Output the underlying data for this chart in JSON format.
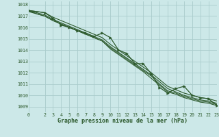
{
  "title": "Graphe pression niveau de la mer (hPa)",
  "bg_color": "#cce8e8",
  "grid_color": "#aacccc",
  "line_color": "#2d5a2d",
  "xlim": [
    0,
    23
  ],
  "ylim": [
    1008.5,
    1018.3
  ],
  "xticks": [
    0,
    2,
    3,
    4,
    5,
    6,
    7,
    8,
    9,
    10,
    11,
    12,
    13,
    14,
    15,
    16,
    17,
    18,
    19,
    20,
    21,
    22,
    23
  ],
  "yticks": [
    1009,
    1010,
    1011,
    1012,
    1013,
    1014,
    1015,
    1016,
    1017,
    1018
  ],
  "smooth1_x": [
    0,
    1,
    2,
    3,
    4,
    5,
    6,
    7,
    8,
    9,
    10,
    11,
    12,
    13,
    14,
    15,
    16,
    17,
    18,
    19,
    20,
    21,
    22,
    23
  ],
  "smooth1_y": [
    1017.5,
    1017.4,
    1017.3,
    1016.9,
    1016.6,
    1016.3,
    1016.0,
    1015.7,
    1015.4,
    1015.1,
    1014.5,
    1014.0,
    1013.5,
    1013.0,
    1012.5,
    1012.0,
    1011.4,
    1010.8,
    1010.5,
    1010.2,
    1010.0,
    1009.8,
    1009.7,
    1009.5
  ],
  "smooth2_x": [
    0,
    1,
    2,
    3,
    4,
    5,
    6,
    7,
    8,
    9,
    10,
    11,
    12,
    13,
    14,
    15,
    16,
    17,
    18,
    19,
    20,
    21,
    22,
    23
  ],
  "smooth2_y": [
    1017.5,
    1017.3,
    1017.1,
    1016.7,
    1016.4,
    1016.1,
    1015.8,
    1015.5,
    1015.2,
    1014.9,
    1014.3,
    1013.8,
    1013.3,
    1012.8,
    1012.3,
    1011.8,
    1011.2,
    1010.6,
    1010.3,
    1010.0,
    1009.8,
    1009.6,
    1009.5,
    1009.3
  ],
  "smooth3_x": [
    0,
    1,
    2,
    3,
    4,
    5,
    6,
    7,
    8,
    9,
    10,
    11,
    12,
    13,
    14,
    15,
    16,
    17,
    18,
    19,
    20,
    21,
    22,
    23
  ],
  "smooth3_y": [
    1017.5,
    1017.2,
    1017.0,
    1016.6,
    1016.3,
    1016.0,
    1015.7,
    1015.4,
    1015.1,
    1014.8,
    1014.2,
    1013.7,
    1013.2,
    1012.7,
    1012.2,
    1011.7,
    1011.0,
    1010.4,
    1010.2,
    1009.9,
    1009.7,
    1009.5,
    1009.4,
    1009.2
  ],
  "smooth4_x": [
    0,
    1,
    2,
    3,
    4,
    5,
    6,
    7,
    8,
    9,
    10,
    11,
    12,
    13,
    14,
    15,
    16,
    17,
    18,
    19,
    20,
    21,
    22,
    23
  ],
  "smooth4_y": [
    1017.4,
    1017.2,
    1017.0,
    1016.6,
    1016.3,
    1016.0,
    1015.7,
    1015.4,
    1015.1,
    1014.8,
    1014.1,
    1013.6,
    1013.1,
    1012.6,
    1012.1,
    1011.5,
    1010.9,
    1010.3,
    1010.1,
    1009.8,
    1009.6,
    1009.4,
    1009.3,
    1009.1
  ],
  "main_x": [
    0,
    2,
    3,
    4,
    5,
    6,
    7,
    8,
    9,
    10,
    11,
    12,
    13,
    14,
    15,
    16,
    17,
    18,
    19,
    20,
    21,
    22,
    23
  ],
  "main_y": [
    1017.5,
    1017.3,
    1016.8,
    1016.2,
    1016.0,
    1015.7,
    1015.5,
    1015.2,
    1015.5,
    1015.1,
    1014.0,
    1013.7,
    1012.8,
    1012.8,
    1011.9,
    1010.7,
    1010.2,
    1010.6,
    1010.8,
    1010.0,
    1009.8,
    1009.7,
    1009.1
  ]
}
